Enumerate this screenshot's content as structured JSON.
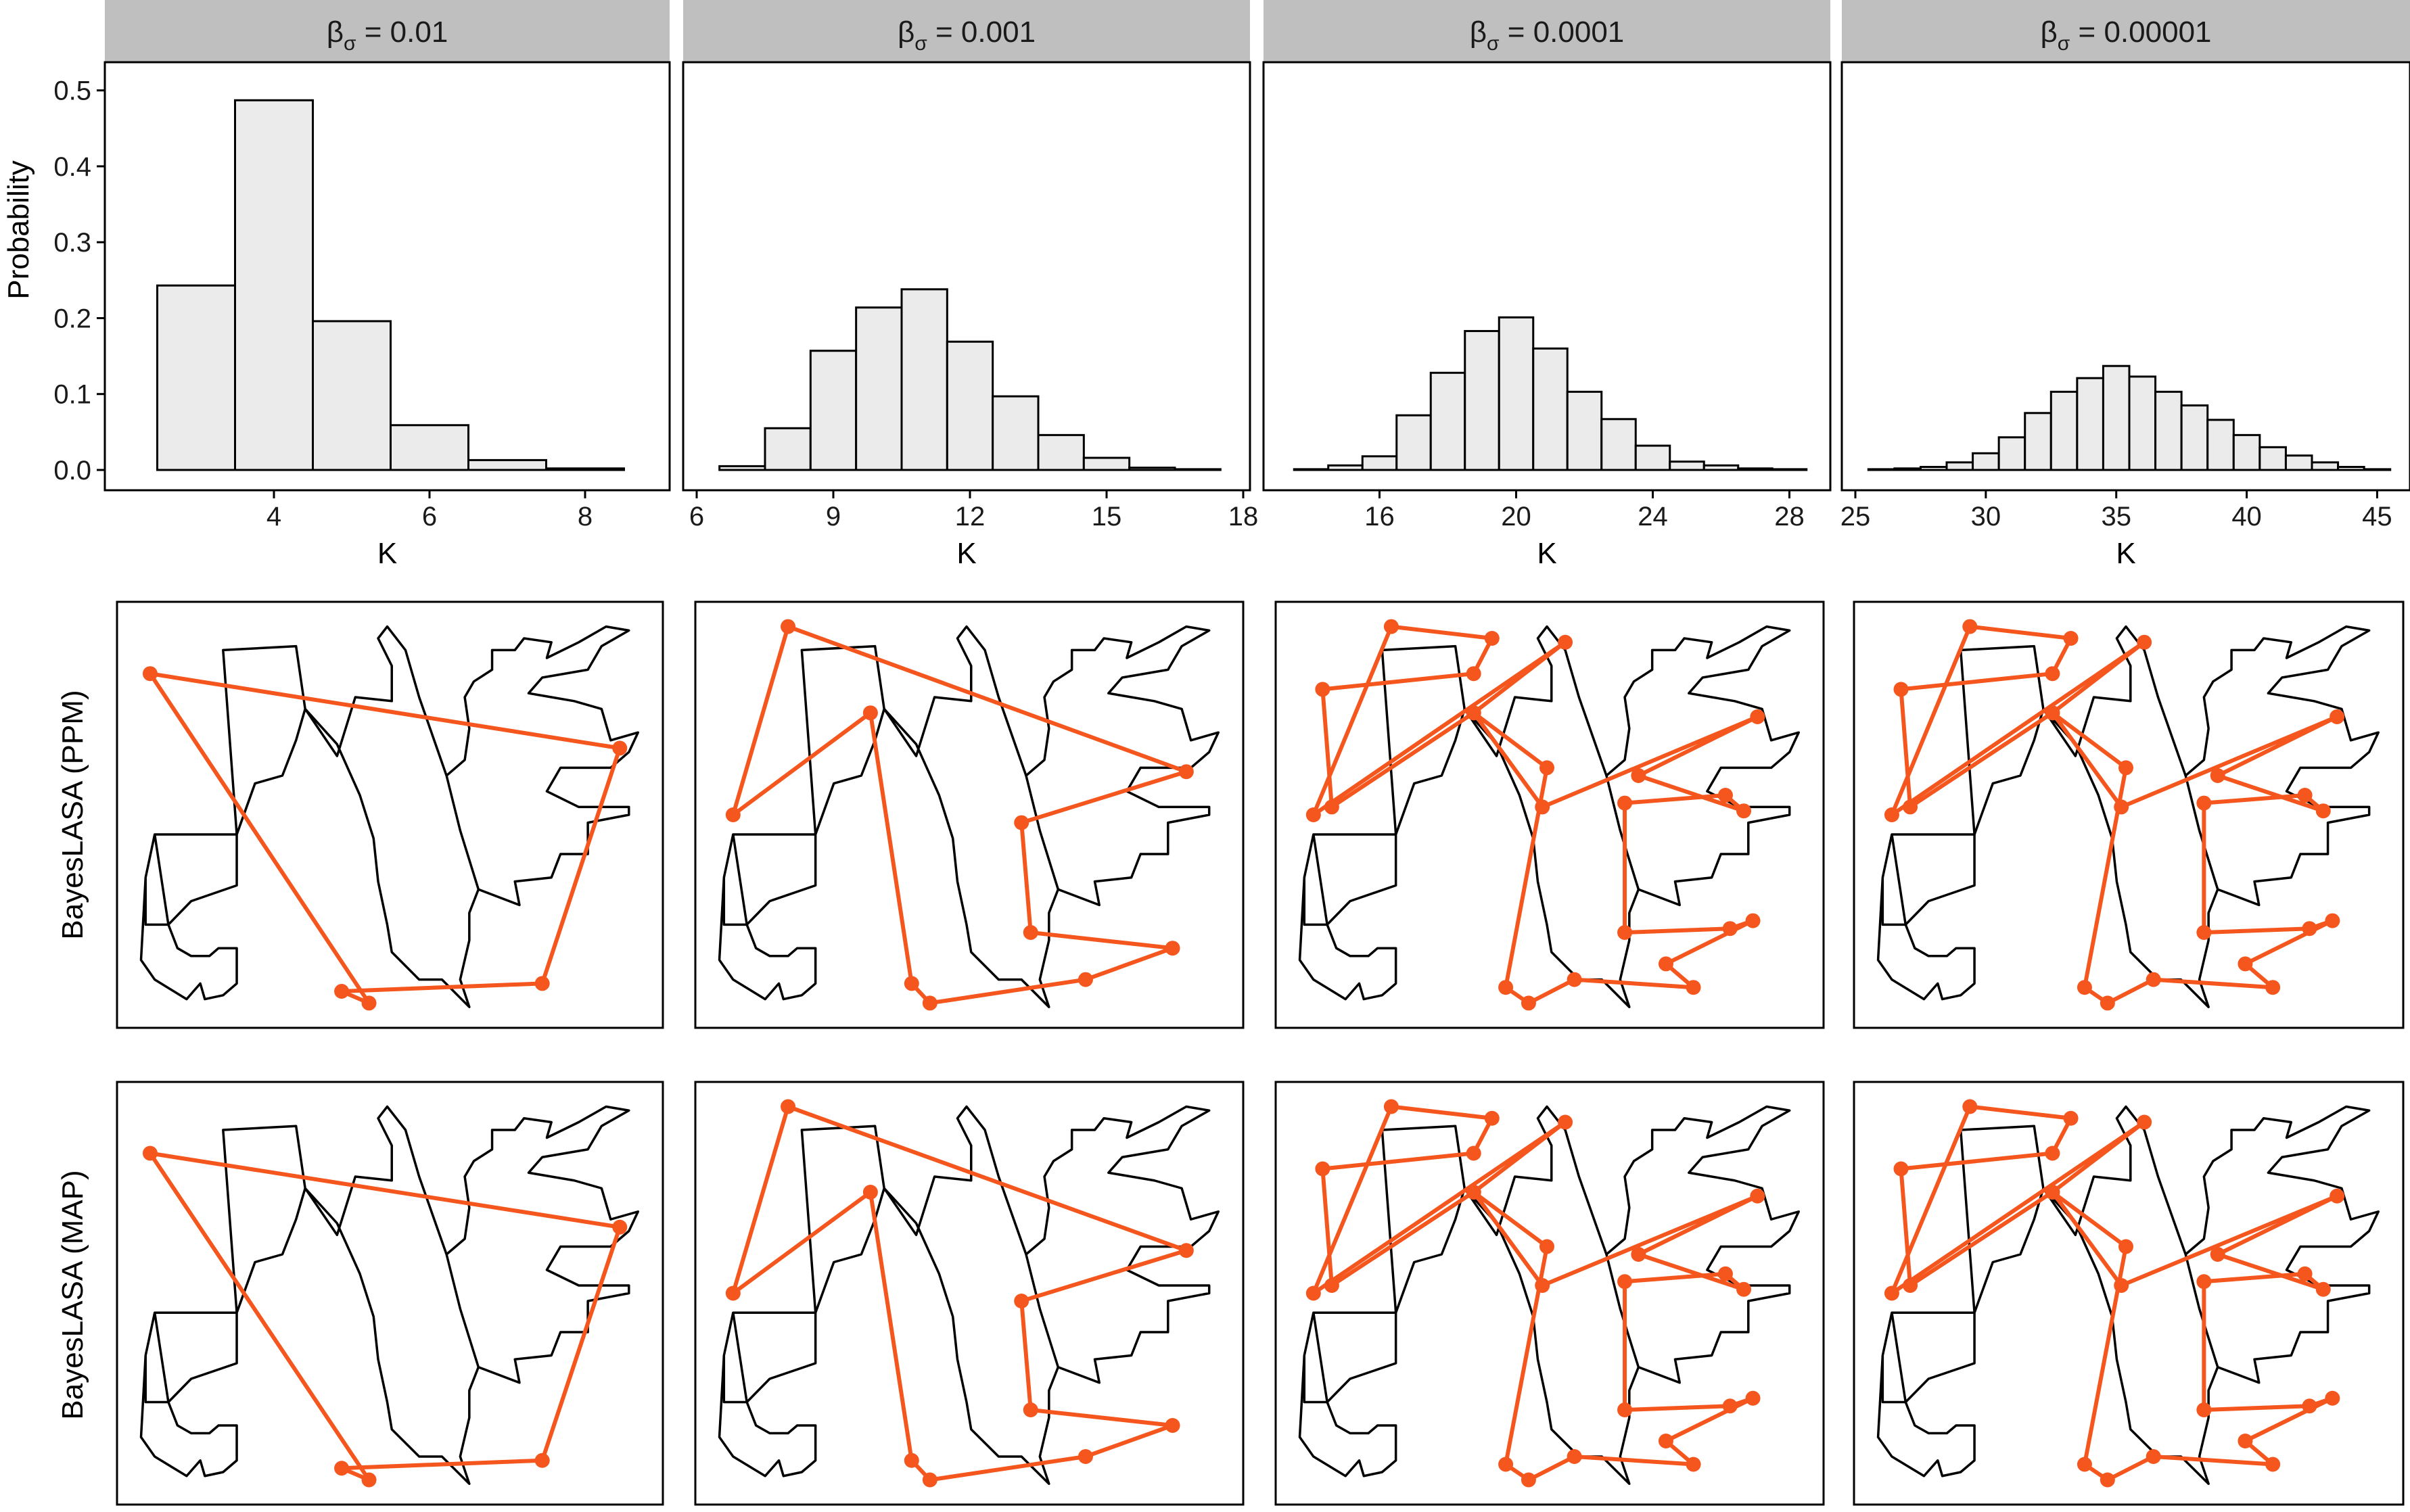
{
  "figure": {
    "facet_strips": [
      {
        "greek": "β",
        "sub": "σ",
        "rest": " = 0.01"
      },
      {
        "greek": "β",
        "sub": "σ",
        "rest": " = 0.001"
      },
      {
        "greek": "β",
        "sub": "σ",
        "rest": " = 0.0001"
      },
      {
        "greek": "β",
        "sub": "σ",
        "rest": " = 0.00001"
      }
    ],
    "row_labels": [
      "BayesLASA (PPM)",
      "BayesLASA (MAP)"
    ],
    "histogram_ylabel": "Probability",
    "histogram_xlabel": "K",
    "colors": {
      "bar_fill": "#ebebeb",
      "bar_stroke": "#000000",
      "outline": "#000000",
      "polygon": "#f4561e",
      "strip": "#bfbfbf"
    }
  },
  "chart_data": [
    {
      "type": "bar",
      "facet": "β_σ = 0.01",
      "xlabel": "K",
      "ylabel": "Probability",
      "xlim": [
        2.5,
        8.5
      ],
      "ylim": [
        0,
        0.5
      ],
      "xticks": [
        4,
        6,
        8
      ],
      "yticks": [
        0.0,
        0.1,
        0.2,
        0.3,
        0.4,
        0.5
      ],
      "x": [
        3,
        4,
        5,
        6,
        7,
        8
      ],
      "values": [
        0.243,
        0.487,
        0.196,
        0.059,
        0.013,
        0.002
      ]
    },
    {
      "type": "bar",
      "facet": "β_σ = 0.001",
      "xlabel": "K",
      "ylabel": "",
      "xlim": [
        6.5,
        17.5
      ],
      "ylim": [
        0,
        0.5
      ],
      "xticks": [
        6,
        9,
        12,
        15,
        18
      ],
      "x": [
        7,
        8,
        9,
        10,
        11,
        12,
        13,
        14,
        15,
        16,
        17
      ],
      "values": [
        0.005,
        0.055,
        0.157,
        0.214,
        0.238,
        0.169,
        0.097,
        0.046,
        0.016,
        0.003,
        0.001
      ]
    },
    {
      "type": "bar",
      "facet": "β_σ = 0.0001",
      "xlabel": "K",
      "ylabel": "",
      "xlim": [
        13.5,
        28.5
      ],
      "ylim": [
        0,
        0.5
      ],
      "xticks": [
        16,
        20,
        24,
        28
      ],
      "x": [
        14,
        15,
        16,
        17,
        18,
        19,
        20,
        21,
        22,
        23,
        24,
        25,
        26,
        27,
        28
      ],
      "values": [
        0.001,
        0.006,
        0.018,
        0.072,
        0.128,
        0.183,
        0.201,
        0.16,
        0.103,
        0.067,
        0.032,
        0.011,
        0.006,
        0.002,
        0.001
      ]
    },
    {
      "type": "bar",
      "facet": "β_σ = 0.00001",
      "xlabel": "K",
      "ylabel": "",
      "xlim": [
        25.5,
        45.5
      ],
      "ylim": [
        0,
        0.5
      ],
      "xticks": [
        25,
        30,
        35,
        40,
        45
      ],
      "x": [
        26,
        27,
        28,
        29,
        30,
        31,
        32,
        33,
        34,
        35,
        36,
        37,
        38,
        39,
        40,
        41,
        42,
        43,
        44,
        45
      ],
      "values": [
        0.001,
        0.002,
        0.004,
        0.01,
        0.022,
        0.043,
        0.075,
        0.103,
        0.121,
        0.137,
        0.123,
        0.103,
        0.085,
        0.066,
        0.046,
        0.03,
        0.019,
        0.01,
        0.004,
        0.001
      ]
    },
    {
      "type": "outline-polygon",
      "note": "shape outline with fitted landmark polygons",
      "outline": [
        [
          5,
          55
        ],
        [
          23,
          55
        ],
        [
          20,
          8
        ],
        [
          36,
          7
        ],
        [
          38,
          23
        ],
        [
          45,
          35
        ],
        [
          49,
          20
        ],
        [
          57,
          21
        ],
        [
          57,
          12
        ],
        [
          54,
          5
        ],
        [
          56,
          2
        ],
        [
          60,
          8
        ],
        [
          63,
          20
        ],
        [
          66,
          30
        ],
        [
          69,
          40
        ],
        [
          72,
          54
        ],
        [
          76,
          69
        ],
        [
          85,
          73
        ],
        [
          84,
          67
        ],
        [
          92,
          66
        ],
        [
          94,
          60
        ],
        [
          100,
          60
        ],
        [
          100,
          52
        ],
        [
          109,
          50
        ],
        [
          109,
          48
        ],
        [
          98,
          48
        ],
        [
          91,
          44
        ],
        [
          94,
          38
        ],
        [
          105,
          38
        ],
        [
          109,
          34
        ],
        [
          111,
          29
        ],
        [
          105,
          31
        ],
        [
          103,
          23
        ],
        [
          97,
          21
        ],
        [
          92,
          20
        ],
        [
          87,
          19
        ],
        [
          90,
          15
        ],
        [
          100,
          13
        ],
        [
          103,
          7
        ],
        [
          109,
          3
        ],
        [
          104,
          2
        ],
        [
          98,
          6
        ],
        [
          91,
          10
        ],
        [
          92,
          6
        ],
        [
          86,
          5
        ],
        [
          84,
          8
        ],
        [
          79,
          8
        ],
        [
          79,
          13
        ],
        [
          75,
          16
        ],
        [
          73,
          20
        ],
        [
          74,
          28
        ],
        [
          73,
          36
        ],
        [
          69,
          40
        ],
        [
          72,
          54
        ],
        [
          76,
          69
        ],
        [
          74,
          75
        ],
        [
          74,
          82
        ],
        [
          72,
          92
        ],
        [
          74,
          99
        ],
        [
          68,
          92
        ],
        [
          63,
          92
        ],
        [
          57,
          85
        ],
        [
          56,
          78
        ],
        [
          54,
          67
        ],
        [
          53,
          56
        ],
        [
          50,
          45
        ],
        [
          45,
          32
        ],
        [
          38,
          23
        ],
        [
          36,
          31
        ],
        [
          33,
          40
        ],
        [
          27,
          42
        ],
        [
          23,
          55
        ],
        [
          23,
          68
        ],
        [
          13,
          72
        ],
        [
          8,
          78
        ],
        [
          5,
          55
        ],
        [
          3,
          66
        ],
        [
          3,
          78
        ],
        [
          8,
          78
        ],
        [
          10,
          84
        ],
        [
          13,
          86
        ],
        [
          17,
          86
        ],
        [
          19,
          84
        ],
        [
          23,
          84
        ],
        [
          23,
          93
        ],
        [
          20,
          96
        ],
        [
          16,
          97
        ],
        [
          15,
          93
        ],
        [
          12,
          97
        ],
        [
          5,
          92
        ],
        [
          2,
          87
        ],
        [
          3,
          66
        ]
      ],
      "polygons": [
        [
          [
            4,
            86
          ],
          [
            102,
            73
          ],
          [
            81,
            5
          ],
          [
            57,
            7
          ],
          [
            48,
            2
          ],
          [
            43,
            10
          ],
          [
            4,
            86
          ]
        ],
        [
          [
            4,
            86
          ],
          [
            102,
            73
          ],
          [
            81,
            5
          ],
          [
            57,
            7
          ],
          [
            48,
            2
          ],
          [
            43,
            10
          ],
          [
            4,
            86
          ]
        ],
        [
          [
            4,
            86
          ],
          [
            102,
            73
          ],
          [
            81,
            5
          ],
          [
            57,
            7
          ],
          [
            48,
            2
          ],
          [
            43,
            10
          ],
          [
            4,
            86
          ]
        ],
        [
          [
            4,
            86
          ],
          [
            102,
            73
          ],
          [
            81,
            5
          ],
          [
            57,
            7
          ],
          [
            48,
            2
          ],
          [
            43,
            10
          ],
          [
            4,
            86
          ]
        ],
        [
          [
            4,
            86
          ],
          [
            102,
            73
          ],
          [
            81,
            5
          ],
          [
            57,
            7
          ],
          [
            48,
            2
          ],
          [
            43,
            10
          ],
          [
            4,
            86
          ]
        ],
        [
          [
            4,
            86
          ],
          [
            102,
            73
          ],
          [
            81,
            5
          ],
          [
            57,
            7
          ],
          [
            48,
            2
          ],
          [
            43,
            10
          ],
          [
            4,
            86
          ]
        ],
        [
          [
            4,
            86
          ],
          [
            102,
            73
          ],
          [
            81,
            5
          ],
          [
            57,
            7
          ],
          [
            48,
            2
          ],
          [
            43,
            10
          ],
          [
            4,
            86
          ]
        ],
        [
          [
            4,
            86
          ],
          [
            102,
            73
          ],
          [
            81,
            5
          ],
          [
            57,
            7
          ],
          [
            48,
            2
          ],
          [
            43,
            10
          ],
          [
            4,
            86
          ]
        ]
      ]
    }
  ]
}
